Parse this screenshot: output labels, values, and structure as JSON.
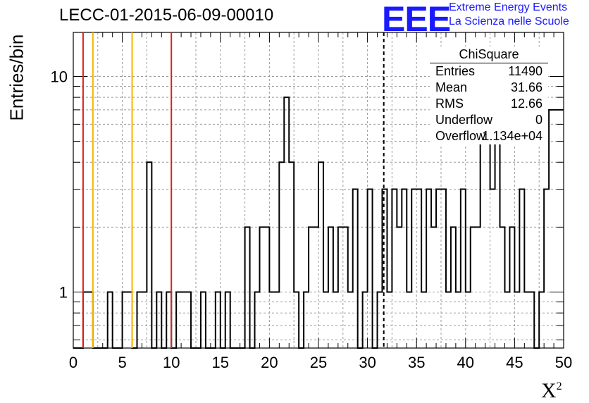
{
  "title": "LECC-01-2015-06-09-00010",
  "logo": {
    "mark": "EEE",
    "line1": "Extreme Energy Events",
    "line2": "La Scienza nelle Scuole"
  },
  "axes": {
    "ylabel": "Entries/bin",
    "xlabel": "X",
    "xlabel_sup": "2"
  },
  "stats": {
    "header": "ChiSquare",
    "rows": [
      {
        "key": "Entries",
        "value": "11490"
      },
      {
        "key": "Mean",
        "value": "31.66"
      },
      {
        "key": "RMS",
        "value": "12.66"
      },
      {
        "key": "Underflow",
        "value": "0"
      },
      {
        "key": "Overflow",
        "value": "1.134e+04"
      }
    ]
  },
  "colors": {
    "red_line": "#dd2020",
    "orange_line": "#f0b800",
    "hist": "#000000",
    "logo": "#1a1aff"
  },
  "chart_data": {
    "type": "histogram",
    "title": "LECC-01-2015-06-09-00010",
    "xlabel": "X²",
    "ylabel": "Entries/bin",
    "xlim": [
      0,
      50
    ],
    "ylim": [
      0.55,
      16
    ],
    "yscale": "log",
    "grid": true,
    "xticks": [
      0,
      5,
      10,
      15,
      20,
      25,
      30,
      35,
      40,
      45,
      50
    ],
    "yticks": [
      1,
      10
    ],
    "bin_width": 0.5,
    "bin_edges_start": 0,
    "counts": [
      0,
      0,
      1,
      0,
      1,
      0,
      0,
      0,
      1,
      0,
      0,
      1,
      1,
      0,
      0,
      1,
      4,
      0,
      0,
      1,
      0,
      1,
      0,
      1,
      1,
      0,
      0,
      1,
      1,
      1,
      1,
      0,
      0,
      0,
      0,
      0,
      0,
      1,
      0,
      0,
      0,
      0,
      1,
      0,
      1,
      0,
      0,
      1,
      0,
      0,
      0,
      0,
      0,
      0,
      0,
      0,
      0,
      0,
      0,
      0,
      0,
      0,
      0,
      0,
      0,
      0,
      0,
      0,
      0,
      0,
      0,
      0,
      0,
      0,
      0,
      0,
      0,
      0,
      0,
      0,
      0,
      0,
      0,
      0,
      0,
      0,
      0,
      0,
      0,
      0,
      0,
      0,
      0,
      0,
      0,
      0,
      0,
      0,
      0,
      0
    ],
    "counts_full": [
      0,
      0,
      1,
      1,
      0,
      0,
      0,
      0,
      1,
      0,
      0,
      0,
      1,
      1,
      0,
      1,
      1,
      4,
      0,
      0,
      1,
      0,
      1,
      0,
      1,
      1,
      1,
      0,
      0,
      0,
      0,
      0,
      0,
      0,
      0,
      0,
      0,
      0,
      0,
      0,
      0,
      0,
      0,
      0,
      0,
      0,
      0,
      0,
      0,
      0,
      0,
      0,
      0,
      0,
      0,
      0,
      0,
      0,
      0,
      0,
      0,
      0,
      0,
      0,
      0,
      0,
      0,
      0,
      0,
      0,
      0,
      0,
      0,
      0,
      0,
      0,
      0,
      0,
      0,
      0,
      0,
      0,
      0,
      0,
      0,
      0,
      0,
      0,
      0,
      0,
      0,
      0,
      0,
      0,
      0,
      0,
      0,
      0,
      0,
      0
    ],
    "hist_steps": [
      [
        0.0,
        0
      ],
      [
        0.5,
        0
      ],
      [
        1.0,
        1
      ],
      [
        1.5,
        1
      ],
      [
        2.0,
        0
      ],
      [
        3.0,
        0
      ],
      [
        3.5,
        1
      ],
      [
        4.0,
        0
      ],
      [
        5.0,
        1
      ],
      [
        6.0,
        0
      ],
      [
        6.5,
        1
      ],
      [
        7.5,
        4
      ],
      [
        8.0,
        0
      ],
      [
        8.5,
        1
      ],
      [
        9.0,
        0
      ],
      [
        9.5,
        1
      ],
      [
        10.0,
        0
      ],
      [
        10.5,
        1
      ],
      [
        12.0,
        0
      ],
      [
        13.0,
        1
      ],
      [
        13.5,
        0
      ],
      [
        14.5,
        1
      ],
      [
        15.0,
        0
      ],
      [
        15.5,
        1
      ],
      [
        16.0,
        0
      ],
      [
        17.5,
        2
      ],
      [
        18.0,
        0
      ],
      [
        18.5,
        1
      ],
      [
        19.0,
        2
      ],
      [
        20.0,
        1
      ],
      [
        21.0,
        4
      ],
      [
        21.5,
        8
      ],
      [
        22.0,
        4
      ],
      [
        22.5,
        1
      ],
      [
        23.0,
        0
      ],
      [
        23.5,
        1
      ],
      [
        24.0,
        2
      ],
      [
        25.0,
        4
      ],
      [
        25.5,
        1
      ],
      [
        26.0,
        2
      ],
      [
        26.5,
        1
      ],
      [
        27.0,
        2
      ],
      [
        28.0,
        1
      ],
      [
        28.5,
        3
      ],
      [
        29.0,
        0
      ],
      [
        29.5,
        1
      ],
      [
        30.0,
        3
      ],
      [
        30.5,
        0
      ],
      [
        31.0,
        1
      ],
      [
        31.5,
        3
      ],
      [
        32.0,
        1
      ],
      [
        32.5,
        3
      ],
      [
        33.0,
        2
      ],
      [
        33.5,
        3
      ],
      [
        34.0,
        1
      ],
      [
        34.5,
        3
      ],
      [
        35.5,
        1
      ],
      [
        36.0,
        3
      ],
      [
        36.5,
        2
      ],
      [
        37.0,
        3
      ],
      [
        38.0,
        1
      ],
      [
        38.5,
        2
      ],
      [
        39.0,
        1
      ],
      [
        39.5,
        3
      ],
      [
        40.0,
        1
      ],
      [
        40.5,
        2
      ],
      [
        41.5,
        6
      ],
      [
        42.0,
        9
      ],
      [
        42.5,
        3
      ],
      [
        43.0,
        6
      ],
      [
        43.5,
        2
      ],
      [
        44.0,
        1
      ],
      [
        44.5,
        2
      ],
      [
        45.0,
        1
      ],
      [
        45.5,
        3
      ],
      [
        46.0,
        1
      ],
      [
        47.0,
        0
      ],
      [
        47.5,
        1
      ],
      [
        48.0,
        3
      ],
      [
        48.5,
        7
      ],
      [
        49.0,
        7
      ],
      [
        50.0,
        7
      ]
    ],
    "vertical_lines": [
      {
        "x": 1.0,
        "color": "red"
      },
      {
        "x": 2.0,
        "color": "orange"
      },
      {
        "x": 6.0,
        "color": "orange"
      },
      {
        "x": 10.0,
        "color": "red"
      },
      {
        "x": 31.66,
        "color": "black",
        "style": "dashed"
      }
    ]
  }
}
